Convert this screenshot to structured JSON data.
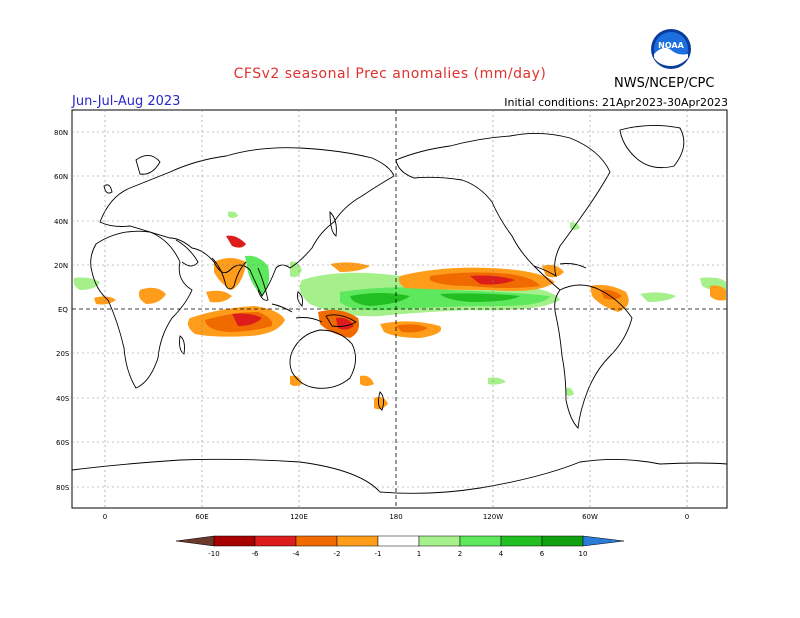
{
  "header": {
    "title": "CFSv2 seasonal Prec anomalies (mm/day)",
    "season": "Jun-Jul-Aug 2023",
    "initial_conditions": "Initial conditions: 21Apr2023-30Apr2023",
    "organization": "NWS/NCEP/CPC",
    "logo_text": "NOAA"
  },
  "map": {
    "lat_labels": [
      "80N",
      "60N",
      "40N",
      "20N",
      "EQ",
      "20S",
      "40S",
      "60S",
      "80S"
    ],
    "lon_labels": [
      "0",
      "60E",
      "120E",
      "180",
      "120W",
      "60W",
      "0"
    ]
  },
  "legend": {
    "labels": [
      "-10",
      "-6",
      "-4",
      "-2",
      "-1",
      "1",
      "2",
      "4",
      "6",
      "10"
    ],
    "colors": [
      "#6b3a2a",
      "#a80000",
      "#dd1c1c",
      "#f06a00",
      "#ff9c1a",
      "#ffffff",
      "#a6f08c",
      "#5ee85e",
      "#22bf22",
      "#10a010",
      "#2b7bd8"
    ]
  },
  "colors": {
    "title": "#e0322e",
    "season": "#2828c8",
    "wet_light": "#a6f08c",
    "wet_mid": "#5ee85e",
    "wet_dark": "#22bf22",
    "dry_light": "#ff9c1a",
    "dry_mid": "#f06a00",
    "dry_dark": "#dd1c1c"
  }
}
